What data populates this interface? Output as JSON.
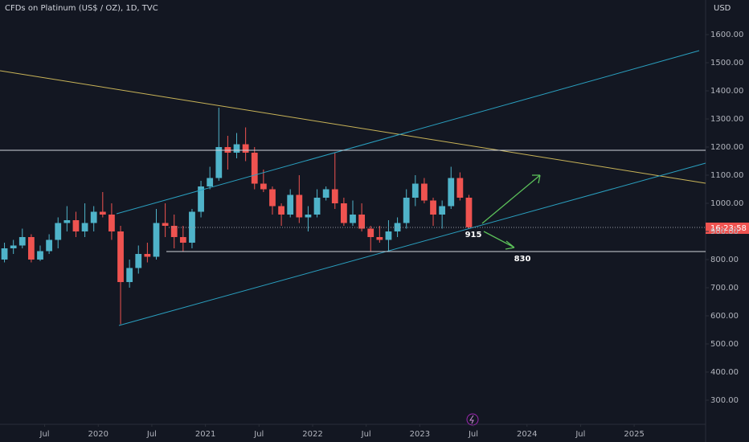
{
  "chart_data": {
    "type": "candlestick",
    "title": "CFDs on Platinum (US$ / OZ), 1D, TVC",
    "y_axis_label": "USD",
    "x": [
      "2019-02",
      "2019-03",
      "2019-04",
      "2019-05",
      "2019-06",
      "2019-07",
      "2019-08",
      "2019-09",
      "2019-10",
      "2019-11",
      "2019-12",
      "2020-01",
      "2020-02",
      "2020-03",
      "2020-04",
      "2020-05",
      "2020-06",
      "2020-07",
      "2020-08",
      "2020-09",
      "2020-10",
      "2020-11",
      "2020-12",
      "2021-01",
      "2021-02",
      "2021-03",
      "2021-04",
      "2021-05",
      "2021-06",
      "2021-07",
      "2021-08",
      "2021-09",
      "2021-10",
      "2021-11",
      "2021-12",
      "2022-01",
      "2022-02",
      "2022-03",
      "2022-04",
      "2022-05",
      "2022-06",
      "2022-07",
      "2022-08",
      "2022-09",
      "2022-10",
      "2022-11",
      "2022-12",
      "2023-01",
      "2023-02",
      "2023-03",
      "2023-04",
      "2023-05",
      "2023-06"
    ],
    "open": [
      800,
      840,
      850,
      880,
      800,
      830,
      870,
      930,
      940,
      900,
      930,
      970,
      960,
      900,
      720,
      770,
      820,
      810,
      930,
      920,
      880,
      860,
      970,
      1060,
      1090,
      1200,
      1180,
      1210,
      1180,
      1070,
      1050,
      990,
      960,
      1030,
      950,
      960,
      1020,
      1050,
      1000,
      930,
      960,
      910,
      880,
      870,
      900,
      930,
      1020,
      1070,
      1010,
      960,
      990,
      1090,
      1020
    ],
    "high": [
      860,
      870,
      910,
      890,
      850,
      890,
      950,
      990,
      970,
      1000,
      990,
      1040,
      1000,
      920,
      800,
      850,
      860,
      980,
      1000,
      960,
      920,
      980,
      1080,
      1130,
      1340,
      1240,
      1250,
      1270,
      1200,
      1120,
      1060,
      1000,
      1050,
      1100,
      990,
      1050,
      1060,
      1180,
      1020,
      1010,
      1000,
      920,
      920,
      940,
      950,
      1050,
      1100,
      1090,
      1020,
      1010,
      1130,
      1110,
      1030
    ],
    "low": [
      790,
      820,
      840,
      790,
      795,
      820,
      840,
      900,
      880,
      880,
      900,
      950,
      870,
      570,
      700,
      750,
      790,
      800,
      880,
      840,
      830,
      840,
      950,
      1050,
      1080,
      1120,
      1160,
      1150,
      1050,
      1040,
      960,
      920,
      950,
      930,
      900,
      950,
      1010,
      980,
      920,
      920,
      900,
      830,
      860,
      830,
      880,
      910,
      990,
      1000,
      920,
      910,
      980,
      1010,
      910
    ],
    "close": [
      840,
      850,
      880,
      800,
      830,
      870,
      930,
      940,
      900,
      930,
      970,
      960,
      900,
      720,
      770,
      820,
      810,
      930,
      920,
      880,
      860,
      970,
      1060,
      1090,
      1200,
      1180,
      1210,
      1180,
      1070,
      1050,
      990,
      960,
      1030,
      950,
      960,
      1020,
      1050,
      1000,
      930,
      960,
      910,
      880,
      870,
      900,
      930,
      1020,
      1070,
      1010,
      960,
      990,
      1090,
      1020,
      915
    ],
    "up_color": "#4fb3c9",
    "down_color": "#ef5350",
    "ylim": [
      237,
      1723
    ],
    "yticks": [
      {
        "value": 300,
        "label": "300.00"
      },
      {
        "value": 400,
        "label": "400.00"
      },
      {
        "value": 500,
        "label": "500.00"
      },
      {
        "value": 600,
        "label": "600.00"
      },
      {
        "value": 700,
        "label": "700.00"
      },
      {
        "value": 800,
        "label": "800.00"
      },
      {
        "value": 900,
        "label": "900.00"
      },
      {
        "value": 1000,
        "label": "1000.00"
      },
      {
        "value": 1100,
        "label": "1100.00"
      },
      {
        "value": 1200,
        "label": "1200.00"
      },
      {
        "value": 1300,
        "label": "1300.00"
      },
      {
        "value": 1400,
        "label": "1400.00"
      },
      {
        "value": 1500,
        "label": "1500.00"
      },
      {
        "value": 1600,
        "label": "1600.00"
      }
    ],
    "xlim": [
      "2019-02",
      "2025-08"
    ],
    "xticks": [
      {
        "value": "2019-07",
        "label": "Jul"
      },
      {
        "value": "2020-01",
        "label": "2020"
      },
      {
        "value": "2020-07",
        "label": "Jul"
      },
      {
        "value": "2021-01",
        "label": "2021"
      },
      {
        "value": "2021-07",
        "label": "Jul"
      },
      {
        "value": "2022-01",
        "label": "2022"
      },
      {
        "value": "2022-07",
        "label": "Jul"
      },
      {
        "value": "2023-01",
        "label": "2023"
      },
      {
        "value": "2023-07",
        "label": "Jul"
      },
      {
        "value": "2024-01",
        "label": "2024"
      },
      {
        "value": "2024-07",
        "label": "Jul"
      },
      {
        "value": "2025-01",
        "label": "2025"
      }
    ],
    "countdown": "16:23:58",
    "annotations": [
      "915",
      "830"
    ]
  }
}
